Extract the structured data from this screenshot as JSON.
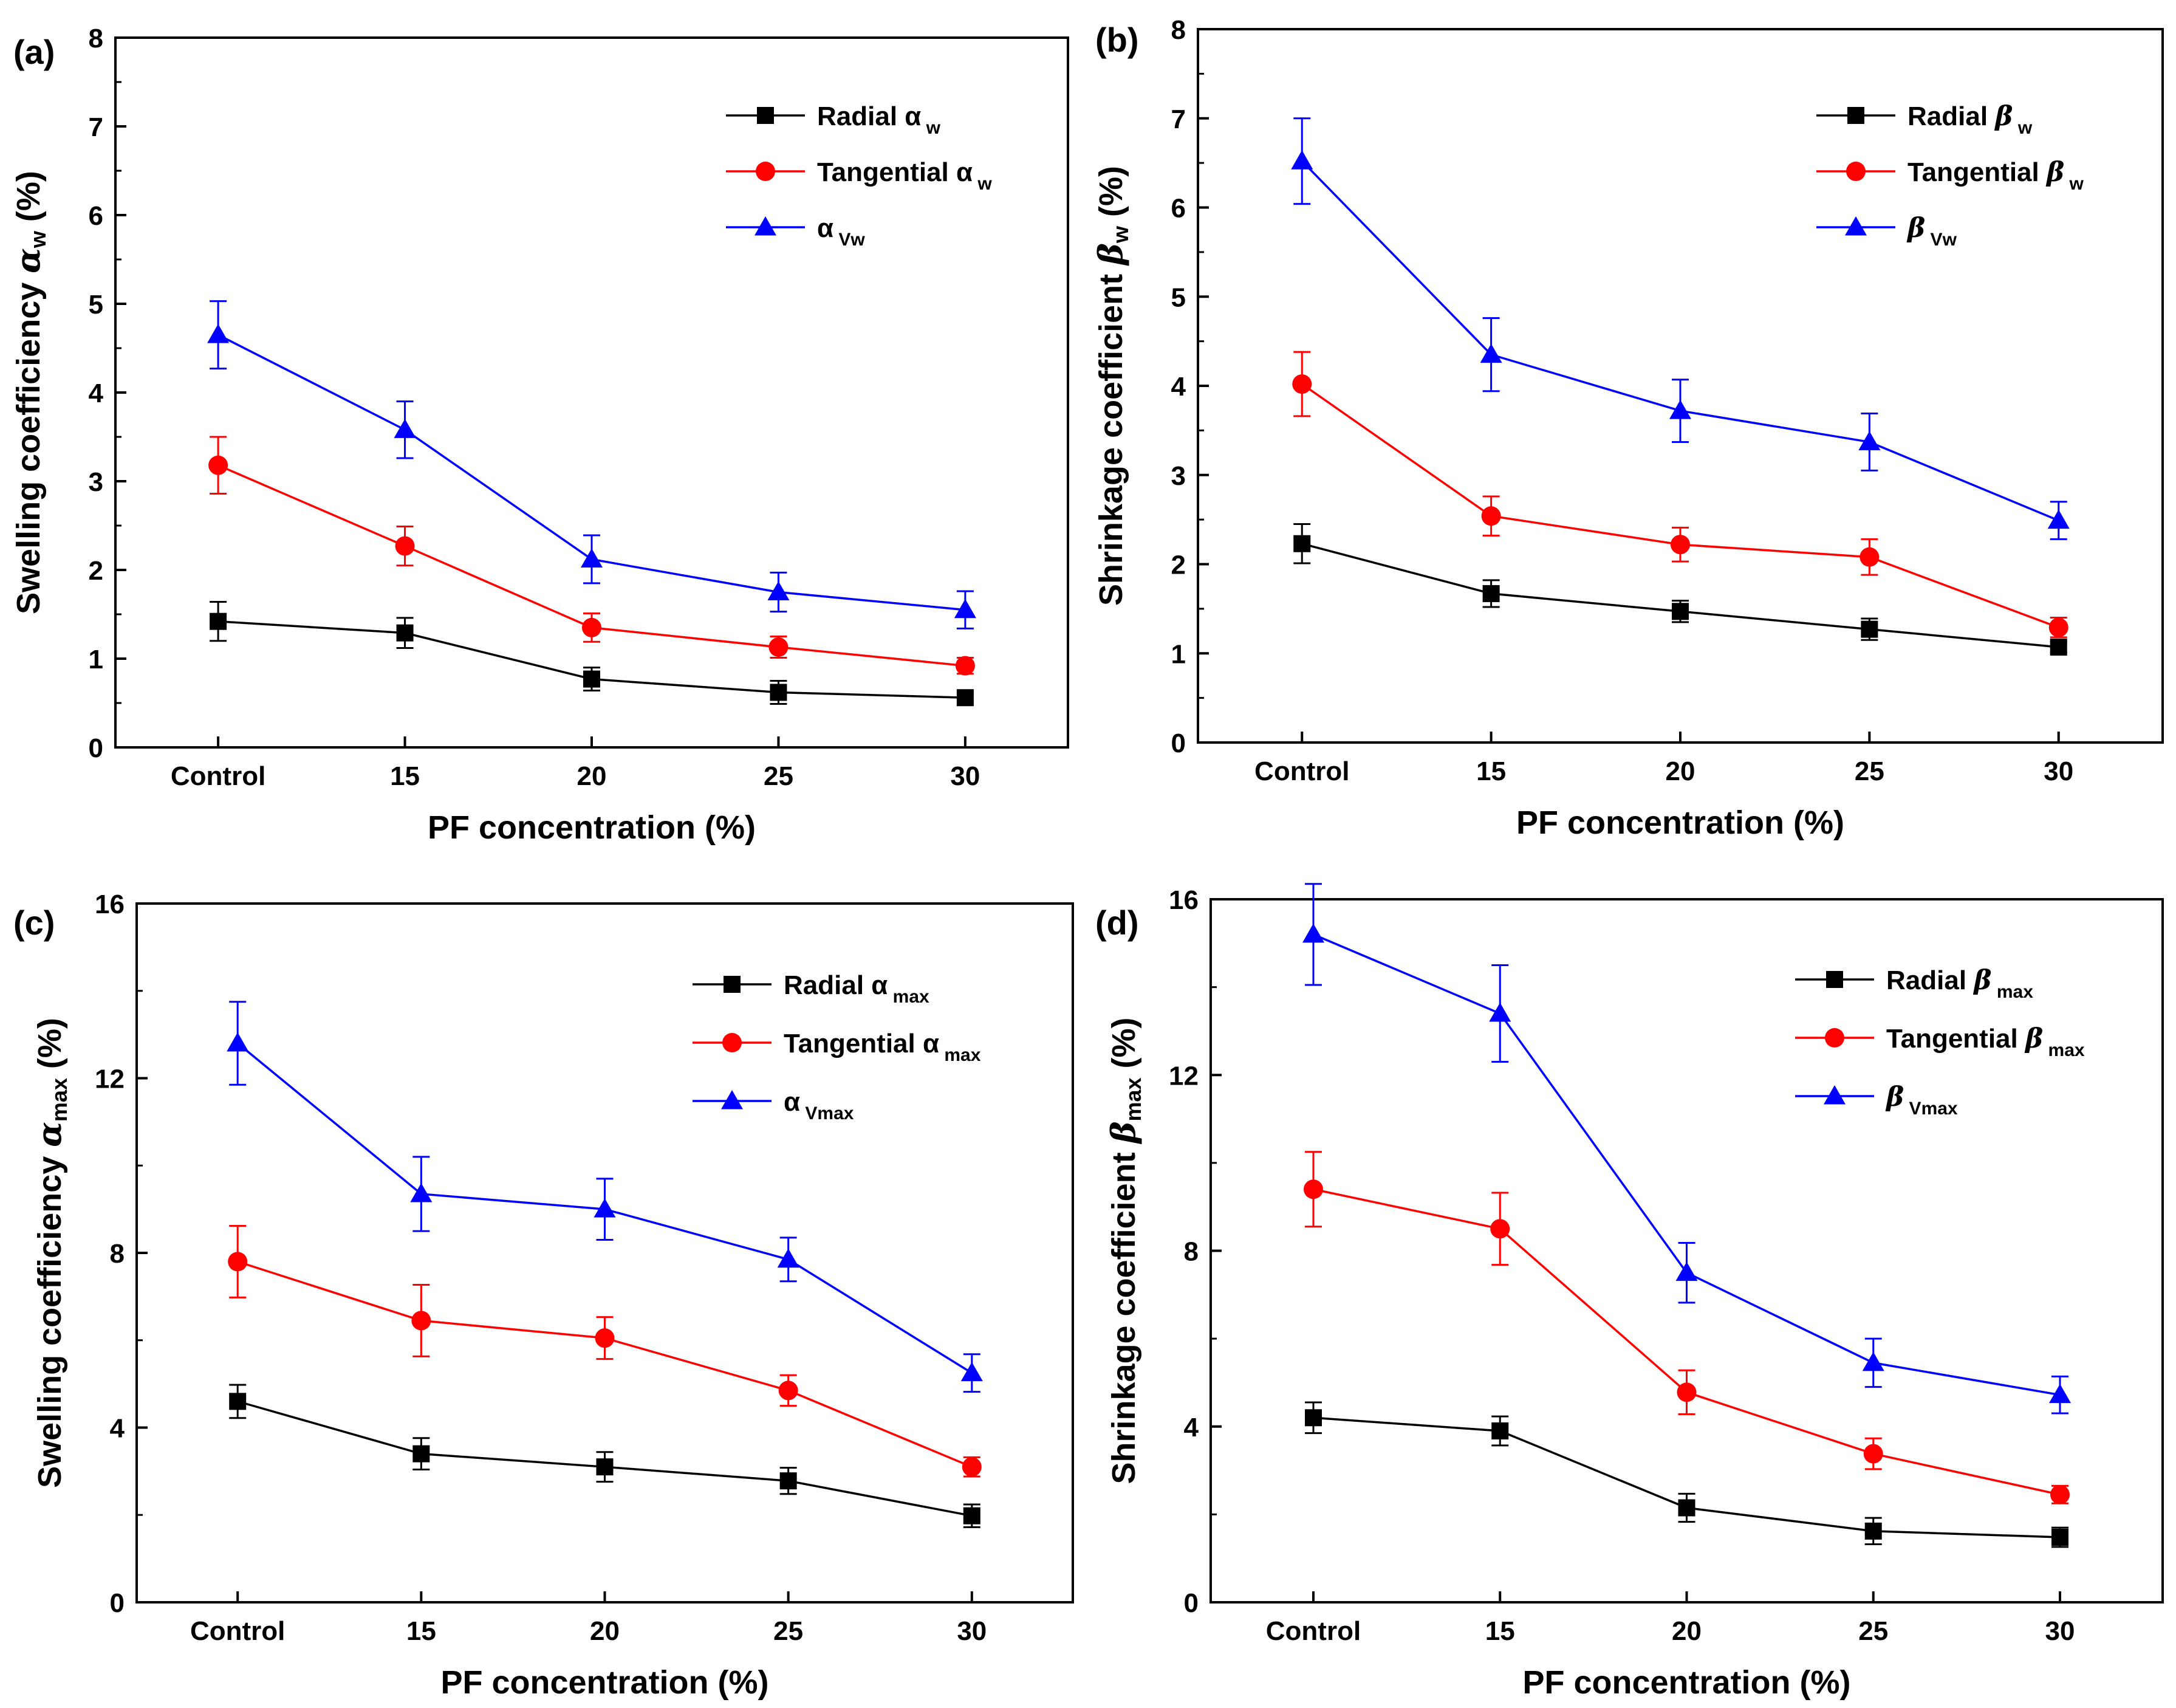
{
  "figure": {
    "panels_count": 4
  },
  "chart_data": [
    {
      "panel": "(a)",
      "type": "line",
      "categories": [
        "Control",
        "15",
        "20",
        "25",
        "30"
      ],
      "xlabel": "PF concentration (%)",
      "ylabel": {
        "prefix": "Swelling coefficiency ",
        "symbol": "α",
        "sub": "w",
        "suffix": " (%)",
        "italic": true
      },
      "ylim": [
        0,
        8
      ],
      "yticks": [
        0,
        1,
        2,
        3,
        4,
        5,
        6,
        7,
        8
      ],
      "series": [
        {
          "name": "Radial",
          "symbol": "α",
          "sub": "w",
          "color": "#000000",
          "marker": "square",
          "values": [
            1.42,
            1.29,
            0.77,
            0.62,
            0.56
          ],
          "errors": [
            0.22,
            0.17,
            0.13,
            0.13,
            0.06
          ]
        },
        {
          "name": "Tangential",
          "symbol": "α",
          "sub": "w",
          "color": "#ff0000",
          "marker": "circle",
          "values": [
            3.18,
            2.27,
            1.35,
            1.13,
            0.92
          ],
          "errors": [
            0.32,
            0.22,
            0.16,
            0.12,
            0.09
          ]
        },
        {
          "name": "",
          "symbol": "α",
          "sub": "Vw",
          "color": "#0000ff",
          "marker": "triangle",
          "values": [
            4.65,
            3.58,
            2.12,
            1.75,
            1.55
          ],
          "errors": [
            0.38,
            0.32,
            0.27,
            0.22,
            0.21
          ]
        }
      ]
    },
    {
      "panel": "(b)",
      "type": "line",
      "categories": [
        "Control",
        "15",
        "20",
        "25",
        "30"
      ],
      "xlabel": "PF concentration (%)",
      "ylabel": {
        "prefix": "Shrinkage coefficient ",
        "symbol": "β",
        "sub": "w",
        "suffix": " (%)",
        "italic": true
      },
      "ylim": [
        0,
        8
      ],
      "yticks": [
        0,
        1,
        2,
        3,
        4,
        5,
        6,
        7,
        8
      ],
      "series": [
        {
          "name": "Radial",
          "symbol": "β",
          "sub": "w",
          "color": "#000000",
          "marker": "square",
          "values": [
            2.23,
            1.67,
            1.47,
            1.27,
            1.07
          ],
          "errors": [
            0.22,
            0.15,
            0.12,
            0.12,
            0.06
          ]
        },
        {
          "name": "Tangential",
          "symbol": "β",
          "sub": "w",
          "color": "#ff0000",
          "marker": "circle",
          "values": [
            4.02,
            2.54,
            2.22,
            2.08,
            1.29
          ],
          "errors": [
            0.36,
            0.22,
            0.19,
            0.2,
            0.11
          ]
        },
        {
          "name": "",
          "symbol": "β",
          "sub": "Vw",
          "color": "#0000ff",
          "marker": "triangle",
          "values": [
            6.52,
            4.35,
            3.72,
            3.37,
            2.49
          ],
          "errors": [
            0.48,
            0.41,
            0.35,
            0.32,
            0.21
          ]
        }
      ]
    },
    {
      "panel": "(c)",
      "type": "line",
      "categories": [
        "Control",
        "15",
        "20",
        "25",
        "30"
      ],
      "xlabel": "PF concentration (%)",
      "ylabel": {
        "prefix": "Swelling coefficiency ",
        "symbol": "α",
        "sub": "max",
        "suffix": " (%)",
        "italic": true
      },
      "ylim": [
        0,
        16
      ],
      "yticks": [
        0,
        4,
        8,
        12,
        16
      ],
      "series": [
        {
          "name": "Radial",
          "symbol": "α",
          "sub": "max",
          "color": "#000000",
          "marker": "square",
          "values": [
            4.6,
            3.4,
            3.1,
            2.78,
            1.98
          ],
          "errors": [
            0.38,
            0.36,
            0.34,
            0.3,
            0.26
          ]
        },
        {
          "name": "Tangential",
          "symbol": "α",
          "sub": "max",
          "color": "#ff0000",
          "marker": "circle",
          "values": [
            7.8,
            6.45,
            6.05,
            4.85,
            3.1
          ],
          "errors": [
            0.82,
            0.82,
            0.48,
            0.35,
            0.22
          ]
        },
        {
          "name": "",
          "symbol": "α",
          "sub": "Vmax",
          "color": "#0000ff",
          "marker": "triangle",
          "values": [
            12.8,
            9.35,
            9.0,
            7.85,
            5.25
          ],
          "errors": [
            0.95,
            0.85,
            0.7,
            0.5,
            0.43
          ]
        }
      ]
    },
    {
      "panel": "(d)",
      "type": "line",
      "categories": [
        "Control",
        "15",
        "20",
        "25",
        "30"
      ],
      "xlabel": "PF concentration (%)",
      "ylabel": {
        "prefix": "Shrinkage coefficient ",
        "symbol": "β",
        "sub": "max",
        "suffix": " (%)",
        "italic": true
      },
      "ylim": [
        0,
        16
      ],
      "yticks": [
        0,
        4,
        8,
        12,
        16
      ],
      "series": [
        {
          "name": "Radial",
          "symbol": "β",
          "sub": "max",
          "color": "#000000",
          "marker": "square",
          "values": [
            4.2,
            3.9,
            2.15,
            1.62,
            1.48
          ],
          "errors": [
            0.35,
            0.33,
            0.32,
            0.3,
            0.22
          ]
        },
        {
          "name": "Tangential",
          "symbol": "β",
          "sub": "max",
          "color": "#ff0000",
          "marker": "circle",
          "values": [
            9.4,
            8.5,
            4.78,
            3.38,
            2.45
          ],
          "errors": [
            0.85,
            0.82,
            0.5,
            0.35,
            0.2
          ]
        },
        {
          "name": "",
          "symbol": "β",
          "sub": "Vmax",
          "color": "#0000ff",
          "marker": "triangle",
          "values": [
            15.2,
            13.4,
            7.5,
            5.45,
            4.72
          ],
          "errors": [
            1.15,
            1.1,
            0.68,
            0.55,
            0.42
          ]
        }
      ]
    }
  ]
}
